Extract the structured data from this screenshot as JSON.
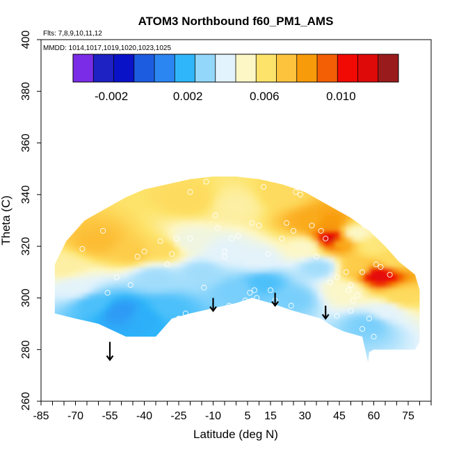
{
  "chart_data": {
    "type": "heatmap",
    "title": "ATOM3 Northbound f60_PM1_AMS",
    "flights_label": "Flts: 7,8,9,10,11,12",
    "dates_label": "MMDD: 1014,1017,1019,1020,1023,1025",
    "xlabel": "Latitude (deg N)",
    "ylabel": "Theta (C)",
    "xlim": [
      -85,
      85
    ],
    "ylim": [
      260,
      400
    ],
    "x_ticks": [
      -85,
      -70,
      -55,
      -40,
      -25,
      -10,
      5,
      15,
      30,
      45,
      60,
      75
    ],
    "x_tick_labels": [
      "-85",
      "-70",
      "-55",
      "-40",
      "-25",
      "-10",
      "5",
      "15",
      "30",
      "45",
      "60",
      "75"
    ],
    "x_minor_step": 5,
    "y_ticks": [
      260,
      280,
      300,
      320,
      340,
      360,
      380,
      400
    ],
    "y_tick_labels": [
      "260",
      "280",
      "300",
      "320",
      "340",
      "360",
      "380",
      "400"
    ],
    "colorbar": {
      "range": [
        -0.004,
        0.013
      ],
      "tick_values": [
        -0.002,
        0.002,
        0.006,
        0.01
      ],
      "tick_labels": [
        "-0.002",
        "0.002",
        "0.006",
        "0.010"
      ],
      "colors": [
        "#7a2ce6",
        "#1e22c2",
        "#0a12c8",
        "#1c5ce0",
        "#2c86f2",
        "#2fb6fa",
        "#93d8fb",
        "#e2f3fd",
        "#fdf7c6",
        "#fde36a",
        "#fdc33d",
        "#f89b0a",
        "#f25f04",
        "#f10a03",
        "#de0a0a",
        "#9a1b1b"
      ]
    },
    "envelope": {
      "top": [
        [
          -79,
          313
        ],
        [
          -74,
          322
        ],
        [
          -66,
          330
        ],
        [
          -58,
          334
        ],
        [
          -48,
          339
        ],
        [
          -40,
          342
        ],
        [
          -30,
          344
        ],
        [
          -20,
          346
        ],
        [
          -10,
          347
        ],
        [
          0,
          347
        ],
        [
          10,
          346
        ],
        [
          20,
          344
        ],
        [
          30,
          341
        ],
        [
          40,
          336
        ],
        [
          50,
          331
        ],
        [
          58,
          326
        ],
        [
          65,
          320
        ],
        [
          71,
          314
        ],
        [
          78,
          309
        ],
        [
          80,
          303
        ]
      ],
      "bottom": [
        [
          80,
          283
        ],
        [
          78,
          280
        ],
        [
          70,
          280
        ],
        [
          60,
          280
        ],
        [
          58,
          279
        ],
        [
          57.5,
          275
        ],
        [
          55,
          285
        ],
        [
          47,
          287
        ],
        [
          42,
          289
        ],
        [
          37,
          292
        ],
        [
          25,
          295
        ],
        [
          15,
          298
        ],
        [
          7,
          300
        ],
        [
          0,
          298
        ],
        [
          -10,
          296
        ],
        [
          -20,
          294
        ],
        [
          -28,
          292
        ],
        [
          -35,
          285
        ],
        [
          -48,
          285
        ],
        [
          -60,
          290
        ],
        [
          -70,
          292
        ],
        [
          -79,
          294
        ]
      ]
    },
    "field": [
      {
        "lat": -70,
        "theta": 304,
        "value": 0.004
      },
      {
        "lat": -62,
        "theta": 298,
        "value": 0.002
      },
      {
        "lat": -50,
        "theta": 295,
        "value": 0.001
      },
      {
        "lat": -40,
        "theta": 293,
        "value": 0.0015
      },
      {
        "lat": -30,
        "theta": 296,
        "value": 0.002
      },
      {
        "lat": -60,
        "theta": 322,
        "value": 0.0075
      },
      {
        "lat": -45,
        "theta": 318,
        "value": 0.007
      },
      {
        "lat": -32,
        "theta": 319,
        "value": 0.0065
      },
      {
        "lat": -20,
        "theta": 322,
        "value": 0.0045
      },
      {
        "lat": -35,
        "theta": 308,
        "value": 0.003
      },
      {
        "lat": -15,
        "theta": 310,
        "value": 0.003
      },
      {
        "lat": -5,
        "theta": 318,
        "value": 0.004
      },
      {
        "lat": 0,
        "theta": 303,
        "value": 0.0025
      },
      {
        "lat": 10,
        "theta": 315,
        "value": 0.004
      },
      {
        "lat": -20,
        "theta": 338,
        "value": 0.0065
      },
      {
        "lat": 0,
        "theta": 336,
        "value": 0.0055
      },
      {
        "lat": 20,
        "theta": 340,
        "value": 0.0065
      },
      {
        "lat": 12,
        "theta": 306,
        "value": 0.002
      },
      {
        "lat": 25,
        "theta": 300,
        "value": 0.0025
      },
      {
        "lat": 30,
        "theta": 320,
        "value": 0.005
      },
      {
        "lat": 33,
        "theta": 330,
        "value": 0.008
      },
      {
        "lat": 40,
        "theta": 329,
        "value": 0.0085
      },
      {
        "lat": 42,
        "theta": 323,
        "value": 0.012
      },
      {
        "lat": 45,
        "theta": 322,
        "value": 0.008
      },
      {
        "lat": 36,
        "theta": 312,
        "value": 0.003
      },
      {
        "lat": 48,
        "theta": 303,
        "value": 0.005
      },
      {
        "lat": 53,
        "theta": 312,
        "value": 0.007
      },
      {
        "lat": 62,
        "theta": 309,
        "value": 0.0115
      },
      {
        "lat": 68,
        "theta": 315,
        "value": 0.0065
      },
      {
        "lat": 72,
        "theta": 300,
        "value": 0.0065
      },
      {
        "lat": 58,
        "theta": 290,
        "value": 0.0025
      },
      {
        "lat": 66,
        "theta": 295,
        "value": 0.004
      },
      {
        "lat": 52,
        "theta": 325,
        "value": 0.005
      },
      {
        "lat": 60,
        "theta": 320,
        "value": 0.006
      },
      {
        "lat": -75,
        "theta": 312,
        "value": 0.0055
      }
    ],
    "observations": [
      [
        -67,
        319
      ],
      [
        -58,
        326
      ],
      [
        -56,
        302
      ],
      [
        -52,
        308
      ],
      [
        -46,
        305
      ],
      [
        -43,
        316
      ],
      [
        -40,
        318
      ],
      [
        -33,
        322
      ],
      [
        -28,
        317
      ],
      [
        -26,
        323
      ],
      [
        -25,
        292
      ],
      [
        -20,
        341
      ],
      [
        -22,
        294
      ],
      [
        -20,
        323
      ],
      [
        -13,
        345
      ],
      [
        -8,
        327
      ],
      [
        -5,
        316
      ],
      [
        -3,
        297
      ],
      [
        -2,
        323
      ],
      [
        1,
        324
      ],
      [
        4,
        299
      ],
      [
        6,
        302
      ],
      [
        7,
        329
      ],
      [
        8,
        303
      ],
      [
        9,
        300
      ],
      [
        10,
        328
      ],
      [
        12,
        343
      ],
      [
        14,
        317
      ],
      [
        15,
        303
      ],
      [
        17,
        299
      ],
      [
        20,
        323
      ],
      [
        22,
        329
      ],
      [
        24,
        297
      ],
      [
        26,
        341
      ],
      [
        28,
        340
      ],
      [
        33,
        328
      ],
      [
        35,
        316
      ],
      [
        39,
        323
      ],
      [
        41,
        306
      ],
      [
        44,
        308
      ],
      [
        44,
        293
      ],
      [
        48,
        310
      ],
      [
        49,
        303
      ],
      [
        50,
        295
      ],
      [
        50,
        305
      ],
      [
        51,
        299
      ],
      [
        53,
        301
      ],
      [
        55,
        331
      ],
      [
        55,
        310
      ],
      [
        56,
        328
      ],
      [
        58,
        292
      ],
      [
        60,
        285
      ],
      [
        61,
        313
      ],
      [
        63,
        312
      ],
      [
        64,
        326
      ],
      [
        66,
        322
      ],
      [
        67,
        309
      ],
      [
        70,
        320
      ],
      [
        72,
        322
      ],
      [
        55,
        288
      ],
      [
        25,
        326
      ],
      [
        -14,
        304
      ],
      [
        -5,
        318
      ],
      [
        37,
        326
      ],
      [
        -9,
        332
      ],
      [
        -30,
        313
      ]
    ],
    "arrows": [
      {
        "lat": -55,
        "theta_top": 283,
        "theta_bottom": 276
      },
      {
        "lat": -10,
        "theta_top": 300,
        "theta_bottom": 295
      },
      {
        "lat": 17,
        "theta_top": 302,
        "theta_bottom": 297
      },
      {
        "lat": 39,
        "theta_top": 297,
        "theta_bottom": 292
      }
    ]
  }
}
